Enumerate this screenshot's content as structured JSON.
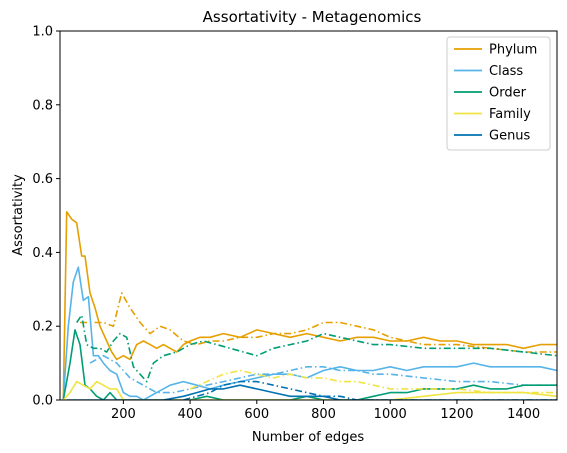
{
  "chart_data": {
    "type": "line",
    "title": "Assortativity - Metagenomics",
    "xlabel": "Number of edges",
    "ylabel": "Assortativity",
    "xlim": [
      10,
      1500
    ],
    "ylim": [
      0,
      1
    ],
    "xticks": [
      200,
      400,
      600,
      800,
      1000,
      1200,
      1400
    ],
    "yticks": [
      0.0,
      0.2,
      0.4,
      0.6,
      0.8,
      1.0
    ],
    "xtick_labels": [
      "200",
      "400",
      "600",
      "800",
      "1000",
      "1200",
      "1400"
    ],
    "ytick_labels": [
      "0.0",
      "0.2",
      "0.4",
      "0.6",
      "0.8",
      "1.0"
    ],
    "grid": false,
    "legend_position": "top-right",
    "series": [
      {
        "name": "Phylum",
        "color": "#E69F00",
        "style": "solid",
        "x": [
          20,
          30,
          45,
          60,
          75,
          85,
          100,
          115,
          130,
          150,
          165,
          180,
          200,
          220,
          240,
          260,
          280,
          300,
          320,
          340,
          360,
          380,
          400,
          430,
          460,
          500,
          550,
          600,
          650,
          700,
          750,
          800,
          850,
          900,
          950,
          1000,
          1050,
          1100,
          1150,
          1200,
          1250,
          1300,
          1350,
          1400,
          1450,
          1500
        ],
        "y": [
          0.0,
          0.51,
          0.49,
          0.48,
          0.39,
          0.39,
          0.29,
          0.25,
          0.2,
          0.16,
          0.13,
          0.11,
          0.12,
          0.11,
          0.15,
          0.16,
          0.15,
          0.14,
          0.15,
          0.14,
          0.13,
          0.15,
          0.16,
          0.17,
          0.17,
          0.18,
          0.17,
          0.19,
          0.18,
          0.17,
          0.18,
          0.17,
          0.16,
          0.17,
          0.17,
          0.16,
          0.16,
          0.17,
          0.16,
          0.16,
          0.15,
          0.15,
          0.15,
          0.14,
          0.15,
          0.15
        ]
      },
      {
        "name": "Phylum (dash-dot)",
        "color": "#E69F00",
        "style": "dashdot",
        "x": [
          70,
          100,
          140,
          170,
          195,
          220,
          250,
          280,
          310,
          340,
          380,
          420,
          460,
          500,
          550,
          600,
          650,
          700,
          750,
          800,
          850,
          900,
          950,
          1000,
          1050,
          1100,
          1200,
          1300,
          1400,
          1500
        ],
        "y": [
          0.21,
          0.21,
          0.21,
          0.2,
          0.29,
          0.25,
          0.21,
          0.18,
          0.2,
          0.19,
          0.16,
          0.15,
          0.16,
          0.16,
          0.17,
          0.17,
          0.18,
          0.18,
          0.19,
          0.21,
          0.21,
          0.2,
          0.19,
          0.17,
          0.16,
          0.15,
          0.15,
          0.14,
          0.13,
          0.13
        ]
      },
      {
        "name": "Class",
        "color": "#56B4E9",
        "style": "solid",
        "x": [
          20,
          35,
          50,
          65,
          80,
          95,
          110,
          125,
          140,
          160,
          180,
          200,
          220,
          240,
          260,
          300,
          340,
          380,
          420,
          460,
          500,
          550,
          600,
          650,
          700,
          750,
          800,
          850,
          900,
          950,
          1000,
          1050,
          1100,
          1150,
          1200,
          1250,
          1300,
          1350,
          1400,
          1450,
          1500
        ],
        "y": [
          0.0,
          0.2,
          0.32,
          0.36,
          0.27,
          0.28,
          0.12,
          0.12,
          0.1,
          0.08,
          0.07,
          0.02,
          0.01,
          0.01,
          0.0,
          0.02,
          0.04,
          0.05,
          0.04,
          0.03,
          0.04,
          0.05,
          0.06,
          0.07,
          0.07,
          0.06,
          0.08,
          0.09,
          0.08,
          0.08,
          0.09,
          0.08,
          0.09,
          0.09,
          0.09,
          0.1,
          0.09,
          0.09,
          0.09,
          0.09,
          0.08
        ]
      },
      {
        "name": "Class (dash-dot)",
        "color": "#56B4E9",
        "style": "dashdot",
        "x": [
          100,
          140,
          180,
          220,
          260,
          300,
          350,
          400,
          450,
          500,
          550,
          600,
          650,
          700,
          750,
          800,
          850,
          900,
          950,
          1000,
          1100,
          1200,
          1300,
          1400,
          1500
        ],
        "y": [
          0.1,
          0.12,
          0.1,
          0.06,
          0.04,
          0.02,
          0.02,
          0.03,
          0.04,
          0.05,
          0.06,
          0.07,
          0.07,
          0.08,
          0.09,
          0.09,
          0.08,
          0.08,
          0.07,
          0.07,
          0.06,
          0.05,
          0.05,
          0.04,
          0.04
        ]
      },
      {
        "name": "Order",
        "color": "#009E73",
        "style": "solid",
        "x": [
          20,
          40,
          55,
          70,
          85,
          100,
          120,
          140,
          160,
          180,
          200,
          230,
          260,
          300,
          350,
          400,
          450,
          500,
          550,
          600,
          650,
          700,
          750,
          800,
          850,
          900,
          950,
          1000,
          1050,
          1100,
          1150,
          1200,
          1250,
          1300,
          1350,
          1400,
          1450,
          1500
        ],
        "y": [
          0.0,
          0.1,
          0.19,
          0.15,
          0.04,
          0.03,
          0.01,
          0.0,
          0.02,
          0.0,
          0.0,
          0.0,
          0.0,
          0.0,
          0.0,
          0.0,
          0.01,
          0.0,
          0.0,
          0.0,
          0.0,
          0.0,
          0.01,
          0.0,
          0.0,
          0.0,
          0.01,
          0.02,
          0.02,
          0.03,
          0.03,
          0.03,
          0.04,
          0.03,
          0.03,
          0.04,
          0.04,
          0.04
        ]
      },
      {
        "name": "Order (dash-dot)",
        "color": "#009E73",
        "style": "dashdot",
        "x": [
          60,
          75,
          90,
          110,
          130,
          150,
          170,
          190,
          210,
          230,
          250,
          270,
          290,
          320,
          360,
          400,
          440,
          480,
          520,
          560,
          600,
          650,
          700,
          750,
          800,
          850,
          900,
          950,
          1000,
          1100,
          1200,
          1300,
          1400,
          1500
        ],
        "y": [
          0.21,
          0.23,
          0.15,
          0.14,
          0.14,
          0.13,
          0.16,
          0.18,
          0.17,
          0.09,
          0.07,
          0.05,
          0.1,
          0.12,
          0.13,
          0.15,
          0.16,
          0.15,
          0.14,
          0.13,
          0.12,
          0.14,
          0.15,
          0.16,
          0.18,
          0.17,
          0.16,
          0.15,
          0.15,
          0.14,
          0.14,
          0.14,
          0.13,
          0.12
        ]
      },
      {
        "name": "Family",
        "color": "#F0E442",
        "style": "solid",
        "x": [
          20,
          40,
          60,
          80,
          100,
          120,
          140,
          160,
          180,
          200,
          230,
          260,
          300,
          350,
          400,
          450,
          500,
          600,
          700,
          800,
          900,
          1000,
          1100,
          1200,
          1300,
          1400,
          1500
        ],
        "y": [
          0.0,
          0.02,
          0.05,
          0.04,
          0.03,
          0.05,
          0.04,
          0.03,
          0.03,
          0.0,
          0.0,
          0.0,
          0.0,
          0.0,
          0.0,
          0.0,
          0.0,
          0.0,
          0.0,
          0.0,
          0.0,
          0.0,
          0.01,
          0.02,
          0.02,
          0.02,
          0.01
        ]
      },
      {
        "name": "Family (dash-dot)",
        "color": "#F0E442",
        "style": "dashdot",
        "x": [
          400,
          450,
          500,
          550,
          600,
          650,
          700,
          750,
          800,
          850,
          900,
          950,
          1000,
          1100,
          1200,
          1300,
          1400,
          1500
        ],
        "y": [
          0.03,
          0.05,
          0.07,
          0.08,
          0.07,
          0.06,
          0.07,
          0.06,
          0.06,
          0.05,
          0.05,
          0.04,
          0.03,
          0.03,
          0.03,
          0.02,
          0.02,
          0.02
        ]
      },
      {
        "name": "Genus",
        "color": "#0072B2",
        "style": "solid",
        "x": [
          30,
          60,
          90,
          120,
          150,
          200,
          260,
          320,
          380,
          420,
          460,
          500,
          550,
          600,
          650,
          700,
          750,
          800,
          850,
          900,
          1000,
          1100,
          1200,
          1300,
          1400,
          1500
        ],
        "y": [
          0.0,
          0.0,
          0.0,
          0.0,
          0.0,
          0.0,
          0.0,
          0.0,
          0.01,
          0.02,
          0.03,
          0.03,
          0.04,
          0.03,
          0.02,
          0.01,
          0.01,
          0.01,
          0.0,
          0.0,
          0.0,
          0.0,
          0.0,
          0.0,
          0.0,
          0.0
        ]
      },
      {
        "name": "Genus (dash-dot)",
        "color": "#0072B2",
        "style": "dashdot",
        "x": [
          380,
          420,
          460,
          500,
          550,
          600,
          650,
          700,
          750,
          800,
          850,
          900,
          1000,
          1100,
          1200,
          1300,
          1400,
          1500
        ],
        "y": [
          0.0,
          0.01,
          0.02,
          0.04,
          0.05,
          0.05,
          0.04,
          0.03,
          0.02,
          0.01,
          0.01,
          0.0,
          0.0,
          0.0,
          0.0,
          0.0,
          0.0,
          0.0
        ]
      }
    ],
    "legend": [
      {
        "label": "Phylum",
        "color": "#E69F00"
      },
      {
        "label": "Class",
        "color": "#56B4E9"
      },
      {
        "label": "Order",
        "color": "#009E73"
      },
      {
        "label": "Family",
        "color": "#F0E442"
      },
      {
        "label": "Genus",
        "color": "#0072B2"
      }
    ]
  }
}
